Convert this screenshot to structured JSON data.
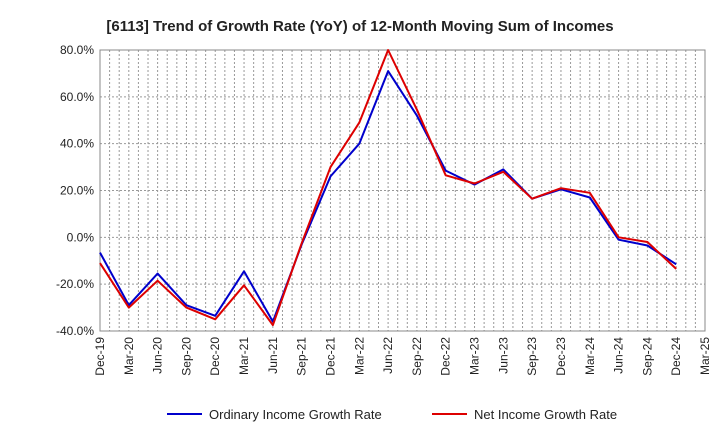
{
  "chart_data": {
    "type": "line",
    "title": "[6113]  Trend of Growth Rate (YoY) of 12-Month Moving Sum of Incomes",
    "xlabel": "",
    "ylabel": "",
    "ylim": [
      -40,
      80
    ],
    "yticks": [
      "80.0%",
      "60.0%",
      "40.0%",
      "20.0%",
      "0.0%",
      "-20.0%",
      "-40.0%"
    ],
    "x_tick_labels": [
      "Dec-19",
      "Mar-20",
      "Jun-20",
      "Sep-20",
      "Dec-20",
      "Mar-21",
      "Jun-21",
      "Sep-21",
      "Dec-21",
      "Mar-22",
      "Jun-22",
      "Sep-22",
      "Dec-22",
      "Mar-23",
      "Jun-23",
      "Sep-23",
      "Dec-23",
      "Mar-24",
      "Jun-24",
      "Sep-24",
      "Dec-24",
      "Mar-25"
    ],
    "grid": true,
    "legend_position": "bottom",
    "series": [
      {
        "name": "Ordinary Income Growth Rate",
        "color": "#0000cc",
        "values": [
          -6.5,
          -29.0,
          -15.5,
          -29.0,
          -33.5,
          -14.5,
          -36.0,
          -3.0,
          26.0,
          40.0,
          71.0,
          52.0,
          28.5,
          22.5,
          29.0,
          16.5,
          20.5,
          17.0,
          -1.0,
          -3.5,
          -11.5
        ]
      },
      {
        "name": "Net Income Growth Rate",
        "color": "#dd0000",
        "values": [
          -11.0,
          -30.0,
          -18.5,
          -30.0,
          -35.0,
          -20.5,
          -37.5,
          -2.5,
          30.0,
          49.0,
          80.0,
          54.5,
          26.5,
          23.0,
          28.0,
          16.5,
          21.0,
          19.0,
          0.0,
          -2.0,
          -13.5
        ]
      }
    ]
  }
}
